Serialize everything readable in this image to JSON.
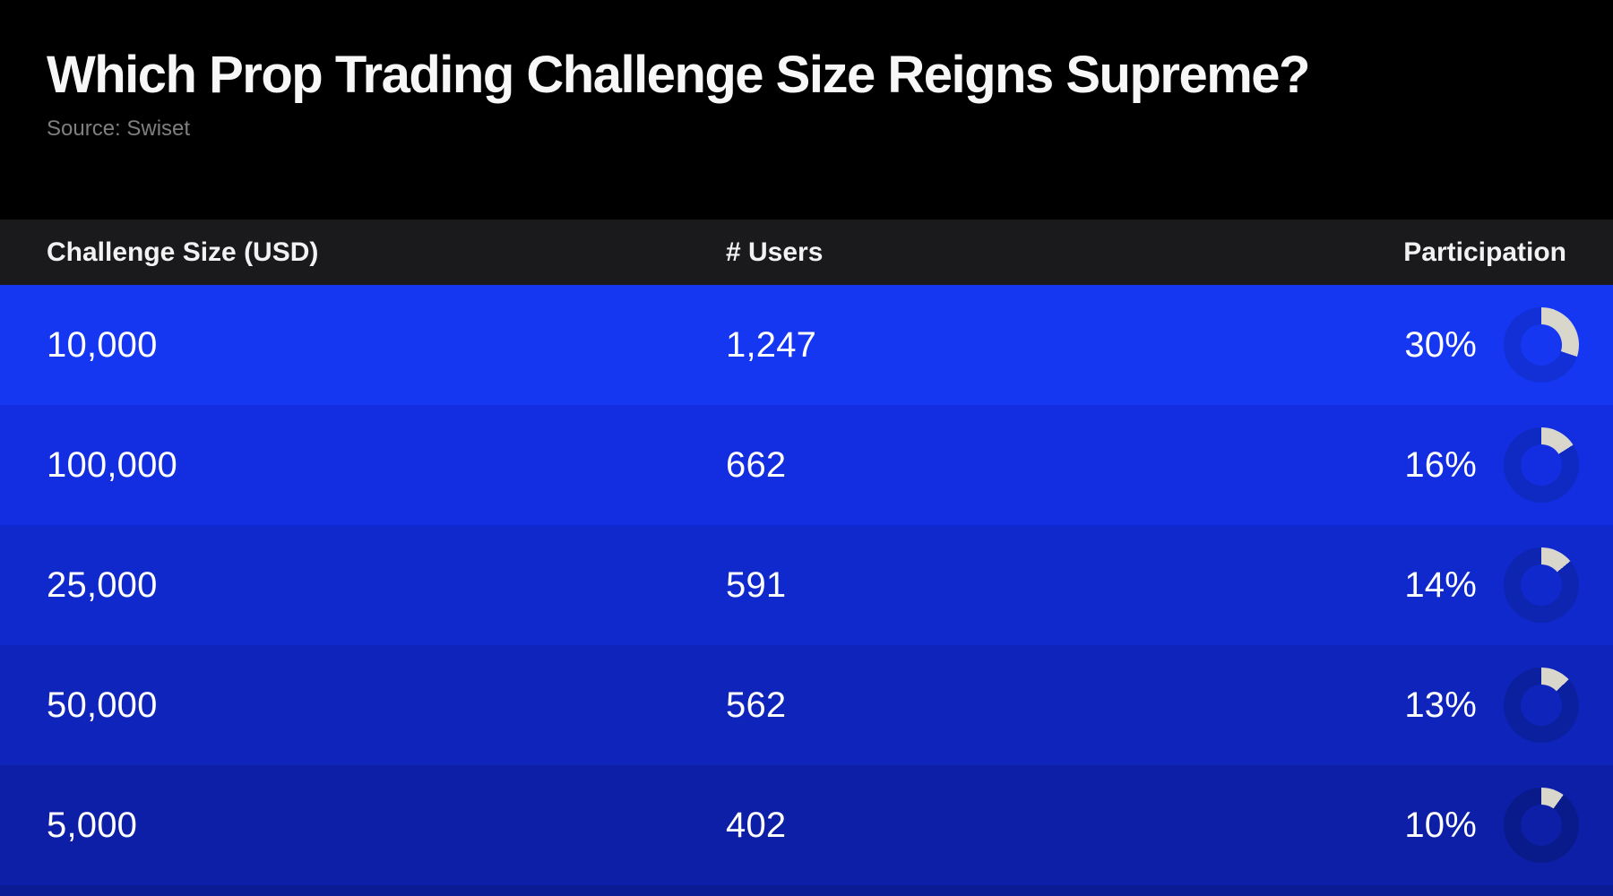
{
  "header": {
    "title": "Which Prop Trading Challenge Size Reigns Supreme?",
    "source": "Source: Swiset"
  },
  "table": {
    "columns": {
      "size": "Challenge Size (USD)",
      "users": "# Users",
      "participation": "Participation"
    },
    "rows": [
      {
        "size": "10,000",
        "users": "1,247",
        "participation": "30%",
        "pct": 30,
        "bg": "#1537f2",
        "track": "#1230d6"
      },
      {
        "size": "100,000",
        "users": "662",
        "participation": "16%",
        "pct": 16,
        "bg": "#122ee0",
        "track": "#0f2ac3"
      },
      {
        "size": "25,000",
        "users": "591",
        "participation": "14%",
        "pct": 14,
        "bg": "#1029cd",
        "track": "#0d25b1"
      },
      {
        "size": "50,000",
        "users": "562",
        "participation": "13%",
        "pct": 13,
        "bg": "#0e24ba",
        "track": "#0b209e"
      },
      {
        "size": "5,000",
        "users": "402",
        "participation": "10%",
        "pct": 10,
        "bg": "#0c1fa6",
        "track": "#091b8b"
      }
    ]
  },
  "colors": {
    "page_background": "#000000",
    "table_header_background": "#1a1a1d",
    "title_text": "#f7f7f7",
    "source_text": "#7f7f7f",
    "row_text": "#ffffff",
    "donut_arc": "#d9d6cc",
    "next_row_peek": "#0a1b94"
  },
  "chart_data": {
    "type": "table",
    "title": "Which Prop Trading Challenge Size Reigns Supreme?",
    "source": "Swiset",
    "columns": [
      "Challenge Size (USD)",
      "# Users",
      "Participation"
    ],
    "rows": [
      {
        "challenge_size_usd": "10,000",
        "users": 1247,
        "participation_pct": 30
      },
      {
        "challenge_size_usd": "100,000",
        "users": 662,
        "participation_pct": 16
      },
      {
        "challenge_size_usd": "25,000",
        "users": 591,
        "participation_pct": 14
      },
      {
        "challenge_size_usd": "50,000",
        "users": 562,
        "participation_pct": 13
      },
      {
        "challenge_size_usd": "5,000",
        "users": 402,
        "participation_pct": 10
      }
    ],
    "notes": "Each row shows a donut/ring progress indicator starting at 12 o'clock, clockwise, filled to participation_pct with a light arc over a darker blue track; row backgrounds darken from top to bottom."
  }
}
